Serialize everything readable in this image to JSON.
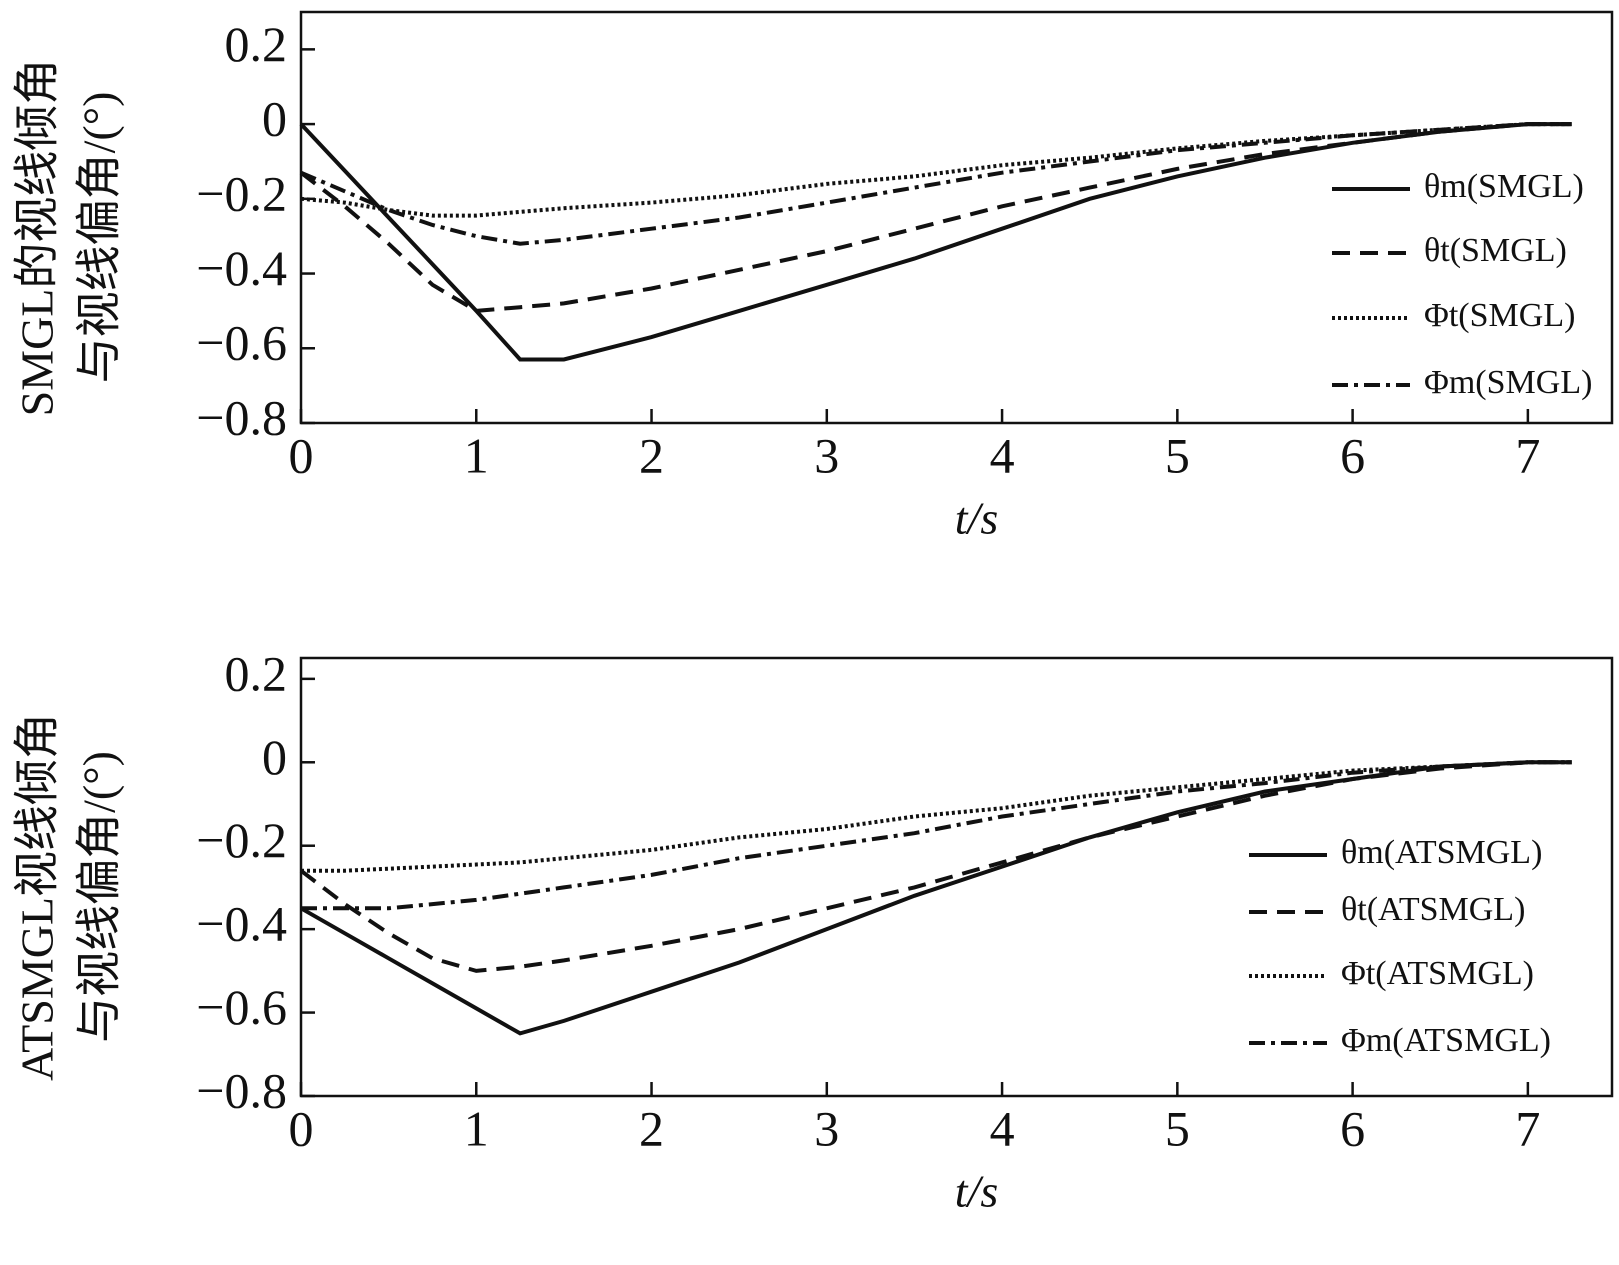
{
  "chart_data": [
    {
      "type": "line",
      "ylabel": [
        "SMGL的视线倾角",
        "与视线偏角/(°)"
      ],
      "xlabel": "t/s",
      "xlim": [
        0,
        7.48
      ],
      "ylim": [
        -0.8,
        0.3
      ],
      "xticks": [
        0,
        1,
        2,
        3,
        4,
        5,
        6,
        7
      ],
      "yticks": [
        {
          "value": -0.8,
          "label": "−0.8"
        },
        {
          "value": -0.6,
          "label": "−0.6"
        },
        {
          "value": -0.4,
          "label": "−0.4"
        },
        {
          "value": -0.2,
          "label": "−0.2"
        },
        0,
        0.2
      ],
      "x": [
        0,
        0.25,
        0.5,
        0.75,
        1,
        1.25,
        1.5,
        2,
        2.5,
        3,
        3.5,
        4,
        4.5,
        5,
        5.5,
        6,
        6.5,
        7,
        7.25
      ],
      "series": [
        {
          "name": "θm(SMGL)",
          "color": "#111",
          "dash": "solid",
          "values": [
            0,
            -0.125,
            -0.25,
            -0.375,
            -0.5,
            -0.63,
            -0.63,
            -0.57,
            -0.5,
            -0.43,
            -0.36,
            -0.28,
            -0.2,
            -0.14,
            -0.09,
            -0.05,
            -0.02,
            0,
            0
          ]
        },
        {
          "name": "θt(SMGL)",
          "color": "#111",
          "dash": "dashed",
          "values": [
            -0.13,
            -0.22,
            -0.32,
            -0.43,
            -0.5,
            -0.49,
            -0.48,
            -0.44,
            -0.39,
            -0.34,
            -0.28,
            -0.22,
            -0.17,
            -0.12,
            -0.08,
            -0.05,
            -0.02,
            0,
            0
          ]
        },
        {
          "name": "Φt(SMGL)",
          "color": "#111",
          "dash": "dotted",
          "values": [
            -0.2,
            -0.21,
            -0.23,
            -0.245,
            -0.245,
            -0.235,
            -0.225,
            -0.21,
            -0.19,
            -0.16,
            -0.14,
            -0.11,
            -0.09,
            -0.065,
            -0.045,
            -0.03,
            -0.015,
            0,
            0
          ]
        },
        {
          "name": "Φm(SMGL)",
          "color": "#111",
          "dash": "dashdot",
          "values": [
            -0.13,
            -0.18,
            -0.23,
            -0.27,
            -0.3,
            -0.32,
            -0.31,
            -0.28,
            -0.25,
            -0.21,
            -0.17,
            -0.13,
            -0.1,
            -0.07,
            -0.05,
            -0.03,
            -0.015,
            0,
            0
          ]
        }
      ]
    },
    {
      "type": "line",
      "ylabel": [
        "ATSMGL视线倾角",
        "与视线偏角/(°)"
      ],
      "xlabel": "t/s",
      "xlim": [
        0,
        7.48
      ],
      "ylim": [
        -0.8,
        0.25
      ],
      "xticks": [
        0,
        1,
        2,
        3,
        4,
        5,
        6,
        7
      ],
      "yticks": [
        {
          "value": -0.8,
          "label": "−0.8"
        },
        {
          "value": -0.6,
          "label": "−0.6"
        },
        {
          "value": -0.4,
          "label": "−0.4"
        },
        {
          "value": -0.2,
          "label": "−0.2"
        },
        0,
        0.2
      ],
      "x": [
        0,
        0.25,
        0.5,
        0.75,
        1,
        1.25,
        1.5,
        2,
        2.5,
        3,
        3.5,
        4,
        4.5,
        5,
        5.5,
        6,
        6.5,
        7,
        7.25
      ],
      "series": [
        {
          "name": "θm(ATSMGL)",
          "color": "#111",
          "dash": "solid",
          "values": [
            -0.35,
            -0.41,
            -0.47,
            -0.53,
            -0.59,
            -0.65,
            -0.62,
            -0.55,
            -0.48,
            -0.4,
            -0.32,
            -0.25,
            -0.18,
            -0.12,
            -0.07,
            -0.04,
            -0.01,
            0,
            0
          ]
        },
        {
          "name": "θt(ATSMGL)",
          "color": "#111",
          "dash": "dashed",
          "values": [
            -0.26,
            -0.34,
            -0.41,
            -0.47,
            -0.5,
            -0.49,
            -0.475,
            -0.44,
            -0.4,
            -0.35,
            -0.3,
            -0.24,
            -0.18,
            -0.13,
            -0.08,
            -0.04,
            -0.015,
            0,
            0
          ]
        },
        {
          "name": "Φt(ATSMGL)",
          "color": "#111",
          "dash": "dotted",
          "values": [
            -0.26,
            -0.26,
            -0.255,
            -0.25,
            -0.245,
            -0.24,
            -0.23,
            -0.21,
            -0.18,
            -0.16,
            -0.13,
            -0.11,
            -0.08,
            -0.06,
            -0.04,
            -0.02,
            -0.01,
            0,
            0
          ]
        },
        {
          "name": "Φm(ATSMGL)",
          "color": "#111",
          "dash": "dashdot",
          "values": [
            -0.35,
            -0.35,
            -0.35,
            -0.34,
            -0.33,
            -0.315,
            -0.3,
            -0.27,
            -0.23,
            -0.2,
            -0.17,
            -0.13,
            -0.1,
            -0.07,
            -0.05,
            -0.025,
            -0.01,
            0,
            0
          ]
        }
      ]
    }
  ]
}
